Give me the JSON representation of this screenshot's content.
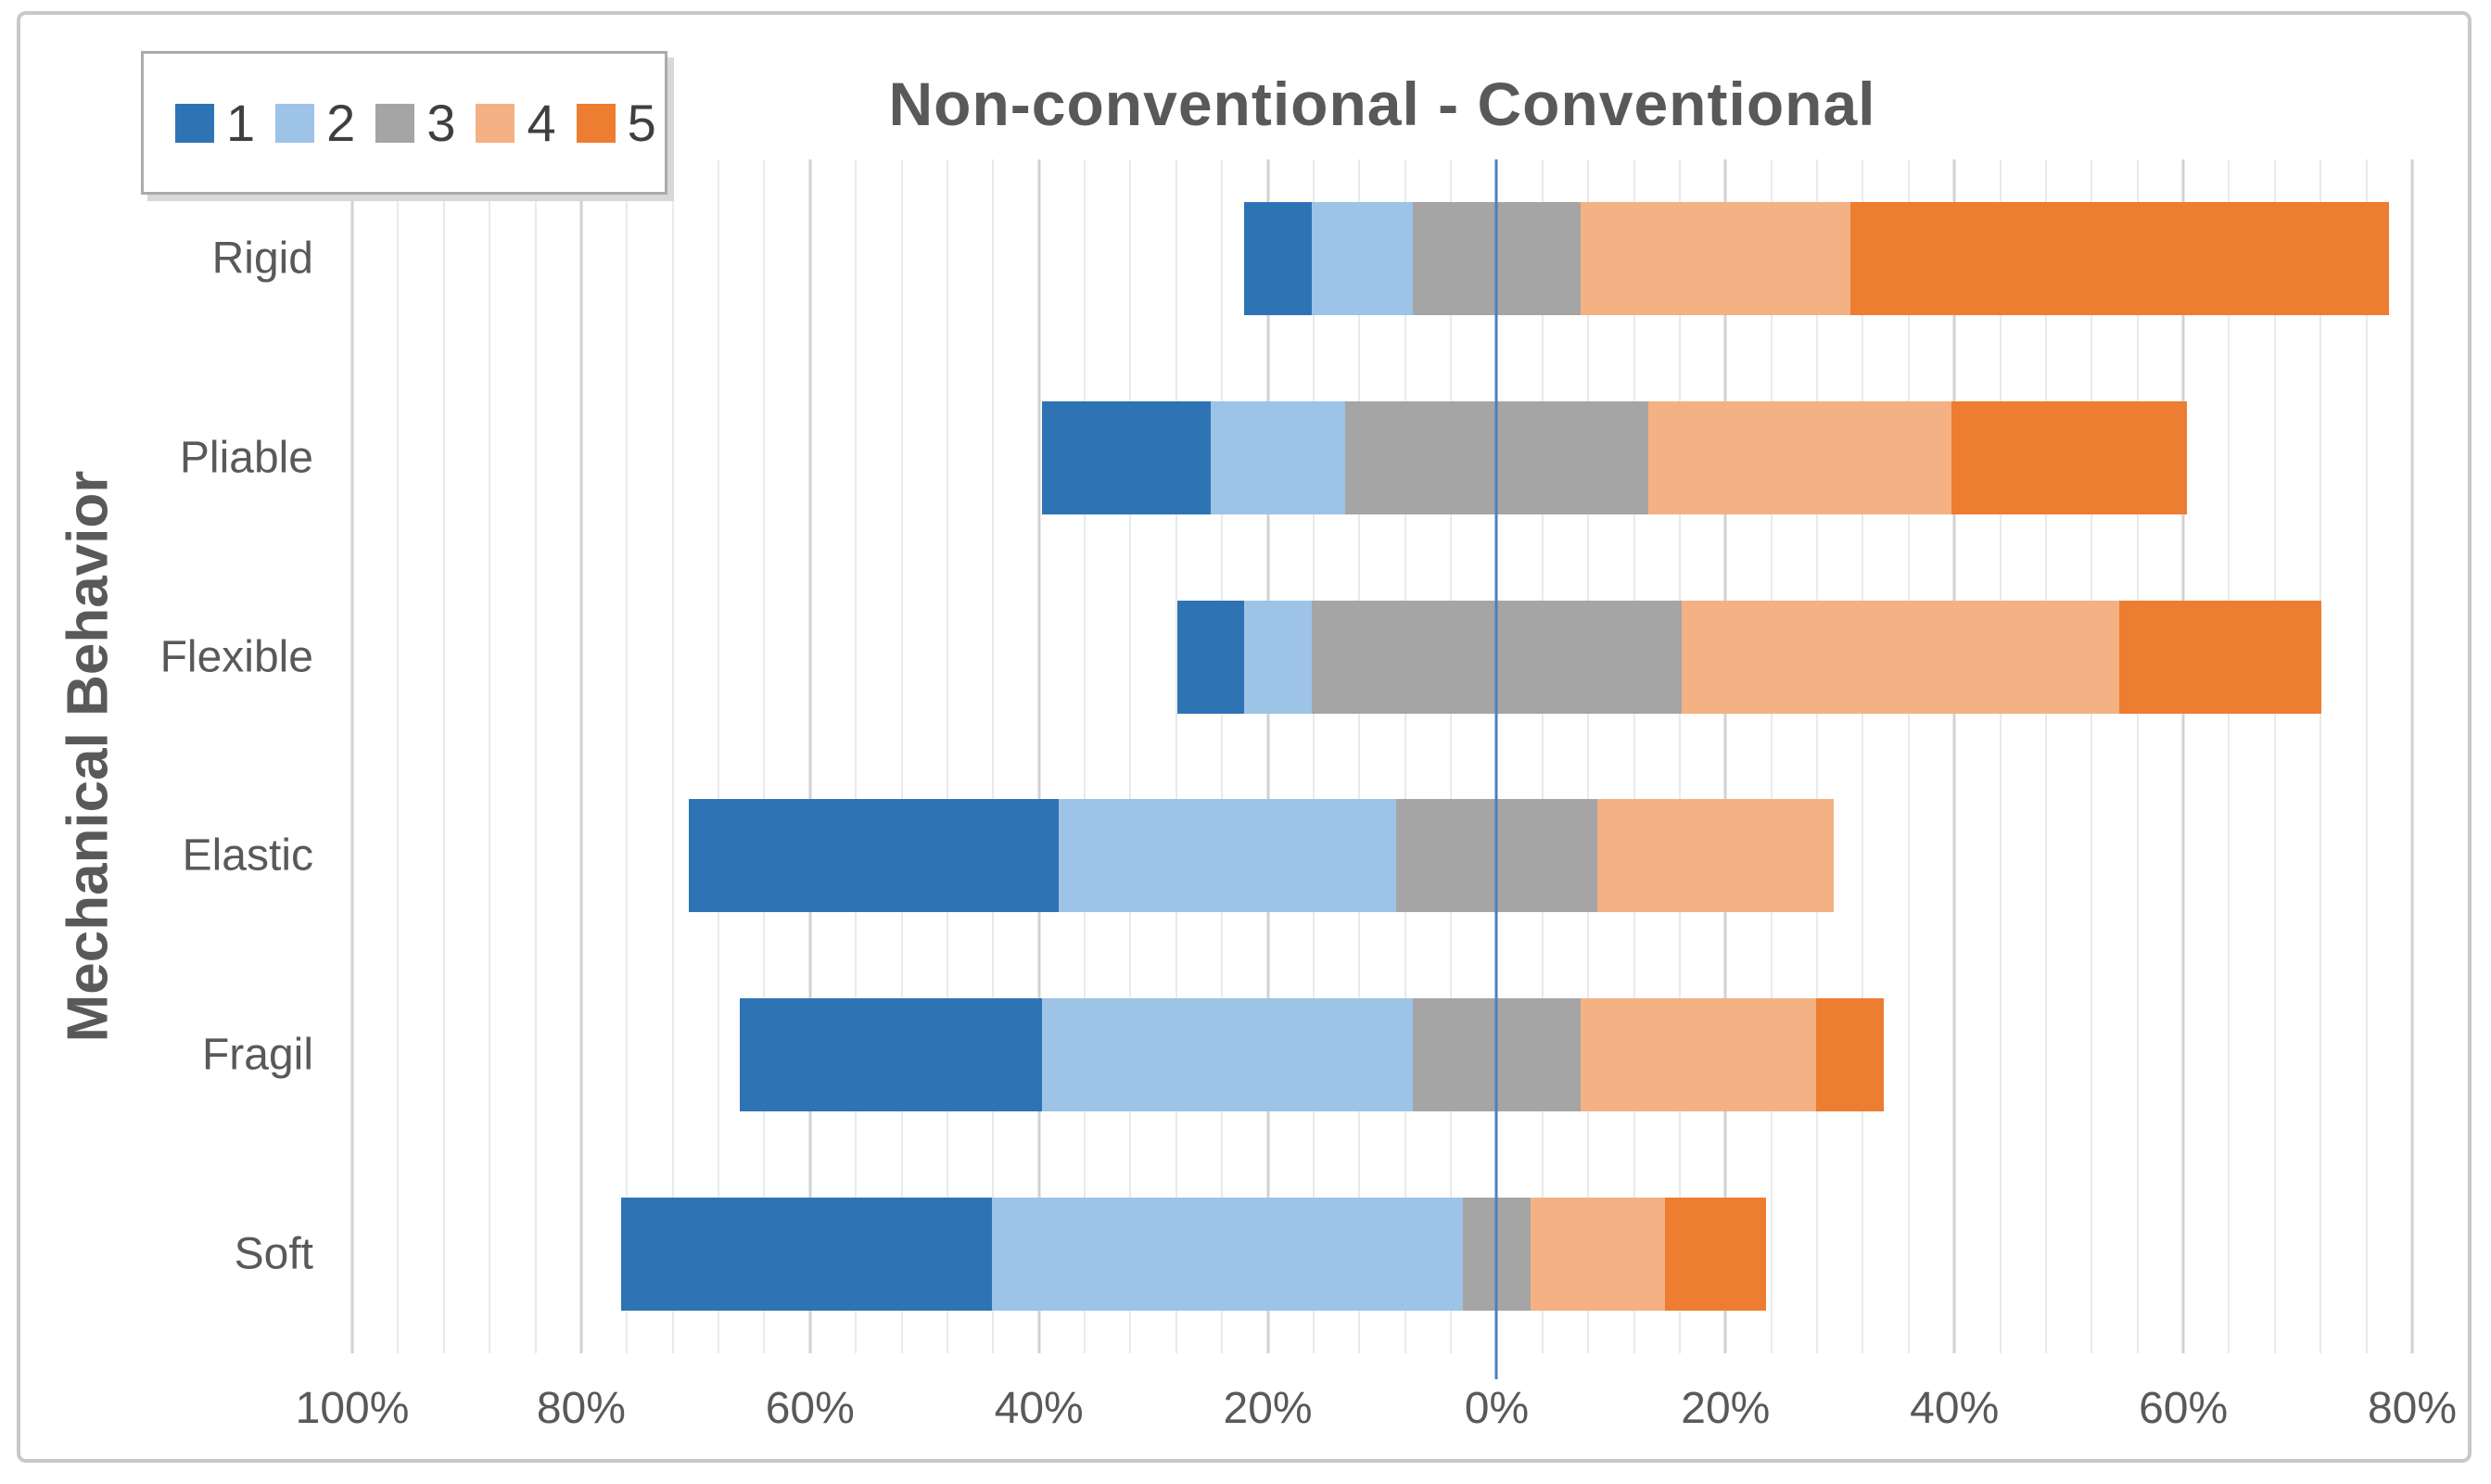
{
  "figure": {
    "title": "Non-conventional - Conventional",
    "y_axis_title": "Mechanical Behavior"
  },
  "legend": {
    "position": "top-left",
    "items": [
      {
        "label": "1",
        "color": "#2E74B5"
      },
      {
        "label": "2",
        "color": "#9DC3E6"
      },
      {
        "label": "3",
        "color": "#A5A5A5"
      },
      {
        "label": "4",
        "color": "#F4B183"
      },
      {
        "label": "5",
        "color": "#ED7D31"
      }
    ]
  },
  "chart_data": {
    "type": "bar",
    "subtype": "diverging-stacked-horizontal",
    "title": "Non-conventional - Conventional",
    "xlabel": "",
    "ylabel": "Mechanical Behavior",
    "categories": [
      "Rigid",
      "Pliable",
      "Flexible",
      "Elastic",
      "Fragil",
      "Soft"
    ],
    "series": [
      {
        "name": "1",
        "color": "#2E74B5",
        "values": [
          5.88,
          14.71,
          5.88,
          32.35,
          26.47,
          32.35
        ]
      },
      {
        "name": "2",
        "color": "#9DC3E6",
        "values": [
          8.82,
          11.76,
          5.88,
          29.41,
          32.35,
          41.18
        ]
      },
      {
        "name": "3",
        "color": "#A5A5A5",
        "values": [
          14.71,
          26.47,
          32.35,
          17.65,
          14.71,
          5.88
        ]
      },
      {
        "name": "4",
        "color": "#F4B183",
        "values": [
          23.53,
          26.47,
          38.24,
          20.59,
          20.59,
          11.76
        ]
      },
      {
        "name": "5",
        "color": "#ED7D31",
        "values": [
          47.06,
          20.59,
          17.65,
          0,
          5.88,
          8.82
        ]
      }
    ],
    "neutral_series_index": 2,
    "baseline": 0,
    "axis": {
      "min": -100,
      "max": 80,
      "major_step": 20,
      "minor_step": 4,
      "unit": "%",
      "tick_labels": [
        "100%",
        "80%",
        "60%",
        "40%",
        "20%",
        "0%",
        "20%",
        "40%",
        "60%",
        "80%"
      ]
    },
    "grid": true,
    "legend_position": "top-left"
  },
  "colors": {
    "zero_line": "#4B80BE",
    "grid_minor": "#EAEAEA",
    "grid_major": "#D2D2D2",
    "text": "#595959",
    "figure_border": "#C9C9C9",
    "legend_border": "#ABABAB"
  }
}
